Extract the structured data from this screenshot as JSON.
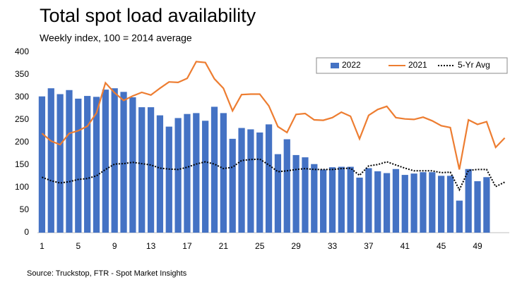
{
  "chart_data": {
    "type": "bar-line",
    "title": "Total spot load availability",
    "subtitle": "Weekly index, 100 = 2014 average",
    "source": "Source: Truckstop, FTR - Spot Market Insights",
    "categories": [
      1,
      null,
      null,
      null,
      5,
      null,
      null,
      null,
      9,
      null,
      null,
      null,
      13,
      null,
      null,
      null,
      17,
      null,
      null,
      null,
      21,
      null,
      null,
      null,
      25,
      null,
      null,
      null,
      29,
      null,
      null,
      null,
      33,
      null,
      null,
      null,
      37,
      null,
      null,
      null,
      41,
      null,
      null,
      null,
      45,
      null,
      null,
      null,
      49,
      null,
      null,
      null
    ],
    "series": [
      {
        "name": "2022",
        "type": "bar",
        "color": "#4472c4",
        "values": [
          302,
          320,
          307,
          316,
          297,
          303,
          301,
          317,
          320,
          312,
          300,
          278,
          278,
          260,
          235,
          254,
          263,
          265,
          248,
          279,
          265,
          208,
          232,
          229,
          222,
          240,
          174,
          207,
          172,
          167,
          152,
          140,
          145,
          146,
          146,
          122,
          143,
          136,
          132,
          141,
          128,
          131,
          134,
          134,
          126,
          126,
          71,
          141,
          114,
          123,
          null,
          null
        ]
      },
      {
        "name": "2021",
        "type": "line",
        "color": "#ed7d31",
        "style": "solid",
        "values": [
          220,
          203,
          195,
          220,
          226,
          236,
          265,
          332,
          310,
          293,
          303,
          311,
          305,
          320,
          334,
          333,
          342,
          379,
          377,
          341,
          320,
          270,
          306,
          307,
          307,
          281,
          235,
          222,
          262,
          264,
          250,
          249,
          255,
          267,
          258,
          208,
          260,
          273,
          280,
          255,
          252,
          251,
          256,
          248,
          237,
          233,
          140,
          250,
          240,
          246,
          189,
          210
        ]
      },
      {
        "name": "5-Yr Avg",
        "type": "line",
        "color": "#000000",
        "style": "dotted",
        "values": [
          123,
          115,
          110,
          113,
          118,
          120,
          126,
          140,
          152,
          153,
          156,
          153,
          150,
          143,
          141,
          140,
          145,
          152,
          157,
          152,
          142,
          145,
          160,
          162,
          163,
          150,
          135,
          137,
          140,
          142,
          140,
          140,
          140,
          142,
          143,
          127,
          148,
          151,
          157,
          150,
          143,
          137,
          137,
          137,
          133,
          134,
          95,
          138,
          140,
          140,
          102,
          112
        ]
      }
    ],
    "ylim": [
      0,
      400
    ],
    "yticks": [
      0,
      50,
      100,
      150,
      200,
      250,
      300,
      350,
      400
    ],
    "grid": false,
    "legend": "top-right"
  }
}
